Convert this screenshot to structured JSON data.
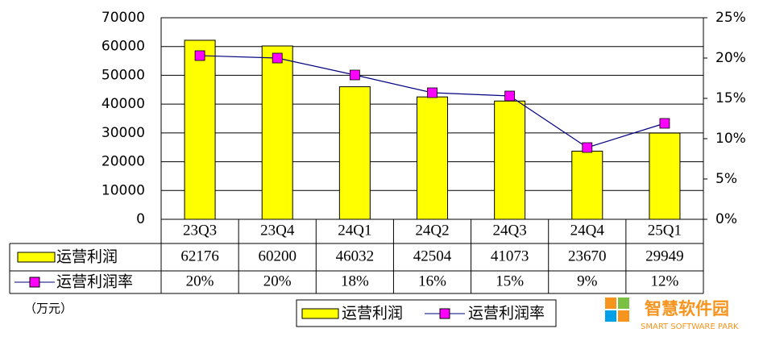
{
  "chart_data": {
    "type": "bar_line",
    "unit_label": "（万元）",
    "categories": [
      "23Q3",
      "23Q4",
      "24Q1",
      "24Q2",
      "24Q3",
      "24Q4",
      "25Q1"
    ],
    "series": [
      {
        "name": "运营利润",
        "type": "bar",
        "color": "#ffff00",
        "values": [
          62176,
          60200,
          46032,
          42504,
          41073,
          23670,
          29949
        ]
      },
      {
        "name": "运营利润率",
        "type": "line",
        "axis": "y2",
        "color": "#000080",
        "marker_color": "#ff00ff",
        "values": [
          20.3,
          20.0,
          17.9,
          15.7,
          15.3,
          8.9,
          11.9
        ],
        "value_labels": [
          "20%",
          "20%",
          "18%",
          "16%",
          "15%",
          "9%",
          "12%"
        ]
      }
    ],
    "ylim": [
      0,
      70000
    ],
    "yticks": [
      0,
      10000,
      20000,
      30000,
      40000,
      50000,
      60000,
      70000
    ],
    "y2lim": [
      0,
      25
    ],
    "y2ticks": [
      {
        "value": 0,
        "label": "0%"
      },
      {
        "value": 5,
        "label": "5%"
      },
      {
        "value": 10,
        "label": "10%"
      },
      {
        "value": 15,
        "label": "15%"
      },
      {
        "value": 20,
        "label": "20%"
      },
      {
        "value": 25,
        "label": "25%"
      }
    ],
    "grid": true,
    "legend": "bottom"
  },
  "watermark": {
    "title": "智慧软件园",
    "subtitle": "SMART SOFTWARE PARK"
  }
}
